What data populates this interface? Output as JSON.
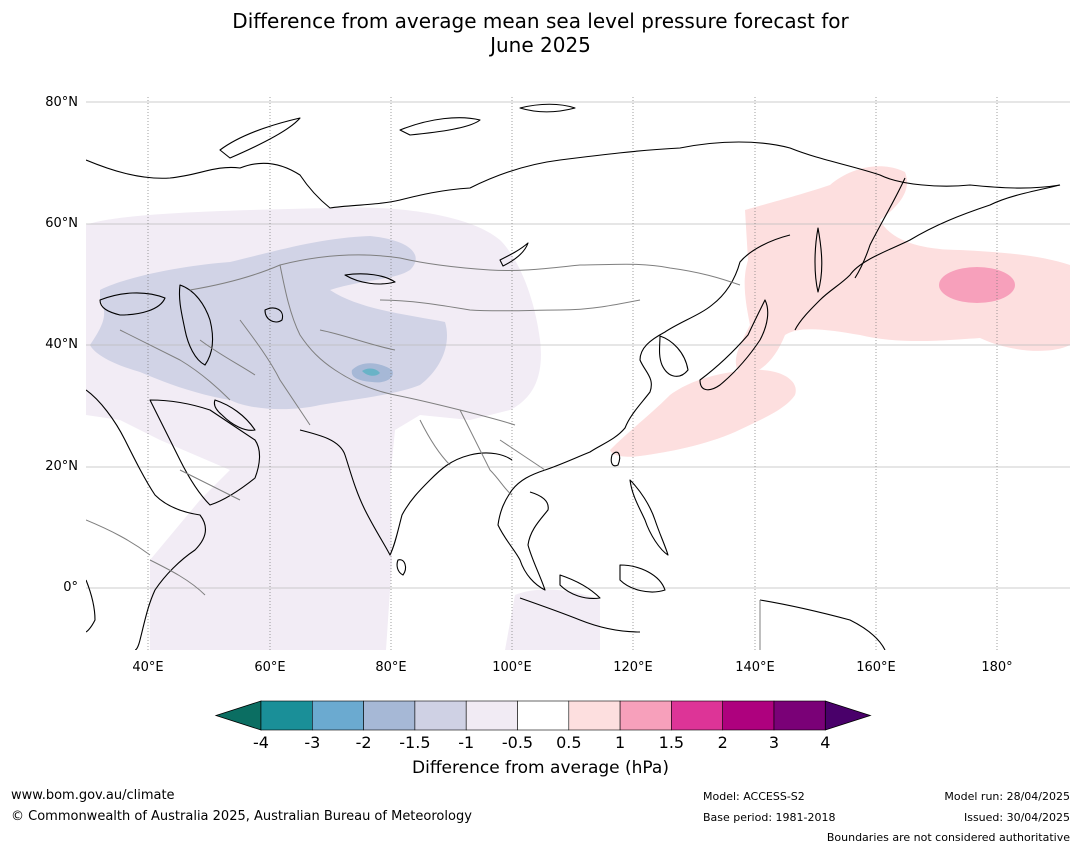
{
  "title_line1": "Difference from average mean sea level pressure forecast for",
  "title_line2": "June 2025",
  "map": {
    "lat_labels": [
      "80°N",
      "60°N",
      "40°N",
      "20°N",
      "0°"
    ],
    "lon_labels": [
      "40°E",
      "60°E",
      "80°E",
      "100°E",
      "120°E",
      "140°E",
      "160°E",
      "180°"
    ]
  },
  "colorbar": {
    "ticks": [
      "-4",
      "-3",
      "-2",
      "-1.5",
      "-1",
      "-0.5",
      "0.5",
      "1",
      "1.5",
      "2",
      "3",
      "4"
    ],
    "colors": [
      "#1a8f98",
      "#6baad0",
      "#a6b8d6",
      "#cfd1e4",
      "#f1ebf4",
      "#ffffff",
      "#fddfdf",
      "#f7a0bb",
      "#dd3497",
      "#ae017e",
      "#7a0177"
    ],
    "low_extend_color": "#0b6e62",
    "high_extend_color": "#49006a",
    "label": "Difference from average (hPa)"
  },
  "footer": {
    "website": "www.bom.gov.au/climate",
    "copyright": "© Commonwealth of Australia 2025, Australian Bureau of Meteorology",
    "model": "Model: ACCESS-S2",
    "base_period": "Base period: 1981-2018",
    "model_run": "Model run: 28/04/2025",
    "issued": "Issued: 30/04/2025",
    "boundaries_note": "Boundaries are not considered authoritative"
  }
}
